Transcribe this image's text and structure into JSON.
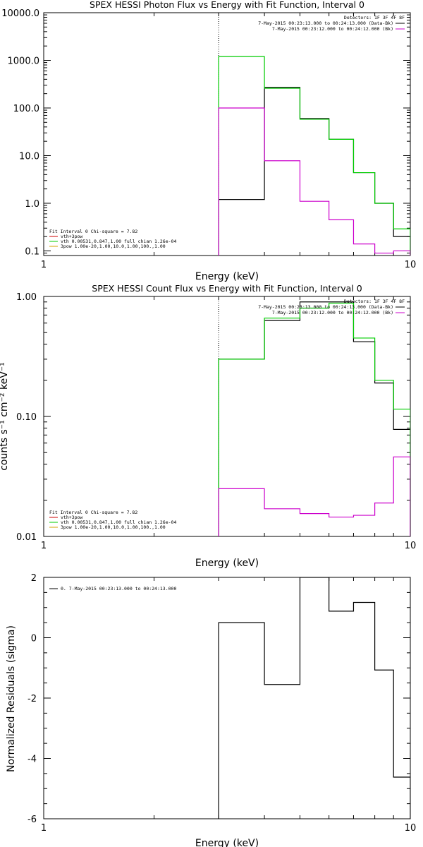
{
  "chart_data": [
    {
      "type": "line",
      "title": "SPEX HESSI Photon Flux vs Energy with Fit Function, Interval 0",
      "xlabel": "Energy (keV)",
      "ylabel": "",
      "x_scale": "log",
      "y_scale": "log",
      "xlim": [
        1,
        10
      ],
      "ylim": [
        0.08,
        10000
      ],
      "x_ticks": [
        {
          "v": 1,
          "label": "1"
        },
        {
          "v": 10,
          "label": "10"
        }
      ],
      "y_ticks": [
        {
          "v": 10000,
          "label": "10000.0"
        },
        {
          "v": 1000,
          "label": "1000.0"
        },
        {
          "v": 100,
          "label": "100.0"
        },
        {
          "v": 10,
          "label": "10.0"
        },
        {
          "v": 1,
          "label": "1.0"
        },
        {
          "v": 0.1,
          "label": "0.1"
        }
      ],
      "marker_line_x": 3.0,
      "bin_edges": [
        3.0,
        4.0,
        5.0,
        6.0,
        7.0,
        8.0,
        9.0,
        10.0
      ],
      "series": [
        {
          "role": "data",
          "color": "#000000",
          "values": [
            1.2,
            270,
            60,
            22,
            4.4,
            1.0,
            0.2
          ]
        },
        {
          "role": "fit",
          "color": "#00cc00",
          "values": [
            1200,
            260,
            58,
            22,
            4.4,
            1.0,
            0.29
          ]
        },
        {
          "role": "background",
          "color": "#cc00cc",
          "values": [
            100,
            7.8,
            1.1,
            0.45,
            0.14,
            0.09,
            0.1
          ]
        }
      ],
      "legend_right": {
        "header": "Detectors: 1F 3F 4F 8F",
        "entries": [
          {
            "label": "7-May-2015 00:23:13.000 to 00:24:13.000 (Data-Bk)",
            "color": "#000000"
          },
          {
            "label": "7-May-2015 00:23:12.000 to 00:24:12.000 (Bk)",
            "color": "#cc00cc"
          }
        ]
      },
      "legend_left": {
        "header": "Fit Interval  0   Chi-square = 7.82",
        "entries": [
          {
            "label": "vth+3pow",
            "color": "#cc0000"
          },
          {
            "label": "vth 0.00531,0.847,1.00  full chian 1.26e-04",
            "color": "#00cc00"
          },
          {
            "label": "3pow 1.00e-20,1.00,10.0,1.00,100.,1.00",
            "color": "#d4a000"
          }
        ]
      }
    },
    {
      "type": "line",
      "title": "SPEX HESSI Count Flux vs Energy with Fit Function, Interval 0",
      "xlabel": "Energy (keV)",
      "ylabel": "counts s⁻¹ cm⁻² keV⁻¹",
      "x_scale": "log",
      "y_scale": "log",
      "xlim": [
        1,
        10
      ],
      "ylim": [
        0.01,
        1.0
      ],
      "x_ticks": [
        {
          "v": 1,
          "label": "1"
        },
        {
          "v": 10,
          "label": "10"
        }
      ],
      "y_ticks": [
        {
          "v": 1.0,
          "label": "1.00"
        },
        {
          "v": 0.1,
          "label": "0.10"
        },
        {
          "v": 0.01,
          "label": "0.01"
        }
      ],
      "marker_line_x": 3.0,
      "bin_edges": [
        3.0,
        4.0,
        5.0,
        6.0,
        7.0,
        8.0,
        9.0,
        10.0
      ],
      "series": [
        {
          "role": "data",
          "color": "#000000",
          "values": [
            0.3,
            0.63,
            0.9,
            0.9,
            0.42,
            0.19,
            0.078
          ]
        },
        {
          "role": "fit",
          "color": "#00cc00",
          "values": [
            0.3,
            0.66,
            0.8,
            0.88,
            0.45,
            0.2,
            0.115
          ]
        },
        {
          "role": "background",
          "color": "#cc00cc",
          "values": [
            0.025,
            0.017,
            0.0155,
            0.0145,
            0.015,
            0.019,
            0.046
          ]
        }
      ],
      "legend_right": {
        "header": "Detectors: 1F 3F 4F 8F",
        "entries": [
          {
            "label": "7-May-2015 00:23:13.000 to 00:24:13.000 (Data-Bk)",
            "color": "#000000"
          },
          {
            "label": "7-May-2015 00:23:12.000 to 00:24:12.000 (Bk)",
            "color": "#cc00cc"
          }
        ]
      },
      "legend_left": {
        "header": "Fit Interval  0   Chi-square = 7.82",
        "entries": [
          {
            "label": "vth+3pow",
            "color": "#cc0000"
          },
          {
            "label": "vth 0.00531,0.847,1.00  full chian 1.26e-04",
            "color": "#00cc00"
          },
          {
            "label": "3pow 1.00e-20,1.00,10.0,1.00,100.,1.00",
            "color": "#d4a000"
          }
        ]
      }
    },
    {
      "type": "line",
      "title": "",
      "xlabel": "Energy (keV)",
      "ylabel": "Normalized Residuals (sigma)",
      "x_scale": "log",
      "y_scale": "linear",
      "xlim": [
        1,
        10
      ],
      "ylim": [
        -6,
        2
      ],
      "x_ticks": [
        {
          "v": 1,
          "label": "1"
        },
        {
          "v": 10,
          "label": "10"
        }
      ],
      "y_ticks": [
        {
          "v": 2,
          "label": "2"
        },
        {
          "v": 0,
          "label": "0"
        },
        {
          "v": -2,
          "label": "-2"
        },
        {
          "v": -4,
          "label": "-4"
        },
        {
          "v": -6,
          "label": "-6"
        }
      ],
      "bin_edges": [
        3.0,
        4.0,
        5.0,
        6.0,
        7.0,
        8.0,
        9.0,
        10.0
      ],
      "series": [
        {
          "role": "residuals",
          "color": "#000000",
          "values": [
            0.5,
            -1.55,
            2.0,
            0.88,
            1.17,
            -1.07,
            -4.62
          ]
        }
      ],
      "legend_left": {
        "header": "",
        "entries": [
          {
            "label": "0.  7-May-2015 00:23:13.000 to 00:24:13.000",
            "color": "#000000"
          }
        ]
      }
    }
  ]
}
